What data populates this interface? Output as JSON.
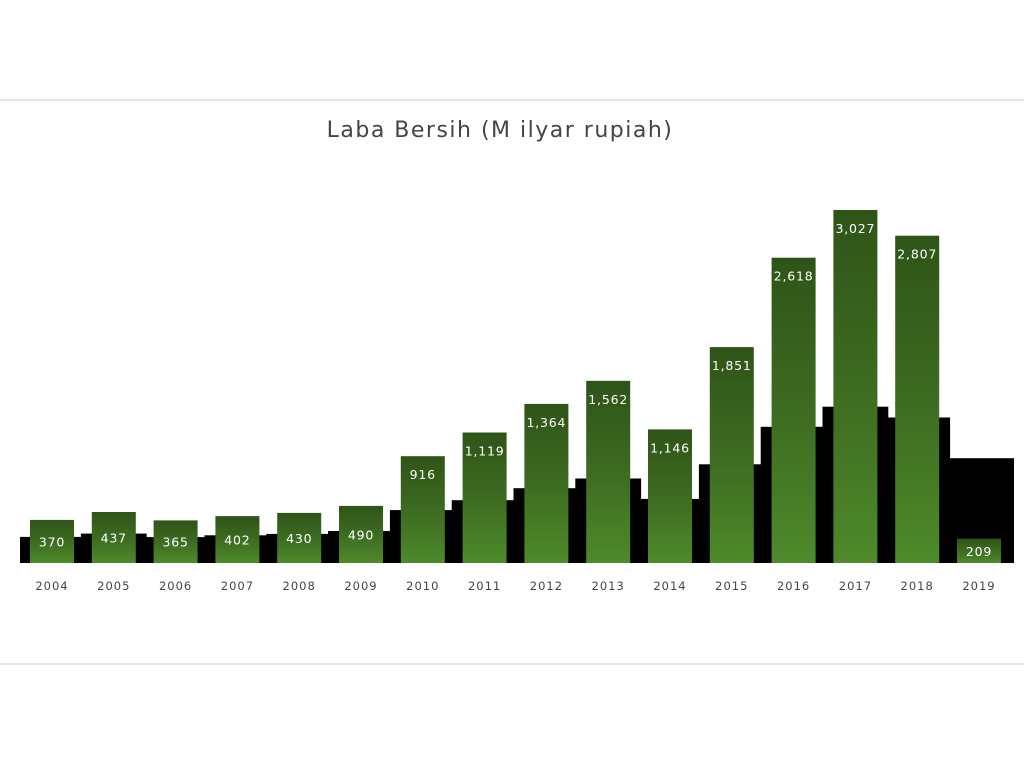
{
  "chart_data": {
    "type": "bar",
    "title": "Laba Bersih (M ilyar rupiah)",
    "xlabel": "",
    "ylabel": "",
    "categories": [
      "2004",
      "2005",
      "2006",
      "2007",
      "2008",
      "2009",
      "2010",
      "2011",
      "2012",
      "2013",
      "2014",
      "2015",
      "2016",
      "2017",
      "2018",
      "2019"
    ],
    "series": [
      {
        "values": [
          370,
          437,
          365,
          402,
          430,
          490,
          916,
          1119,
          1364,
          1562,
          1146,
          1851,
          2618,
          3027,
          2807,
          209
        ],
        "value_labels": [
          "370",
          "437",
          "365",
          "402",
          "430",
          "490",
          "916",
          "1,119",
          "1,364",
          "1,562",
          "1,146",
          "1,851",
          "2,618",
          "3,027",
          "2,807",
          "209"
        ]
      }
    ],
    "ylim": [
      0,
      3027
    ],
    "grid": false,
    "colors": {
      "bar_top": "#2f5418",
      "bar_mid": "#3d6b21",
      "bar_bottom": "#4e8a2a",
      "shadow": "#000000",
      "tick_text": "#444444",
      "title_text": "#444444",
      "divider": "#e6e6e6"
    }
  }
}
